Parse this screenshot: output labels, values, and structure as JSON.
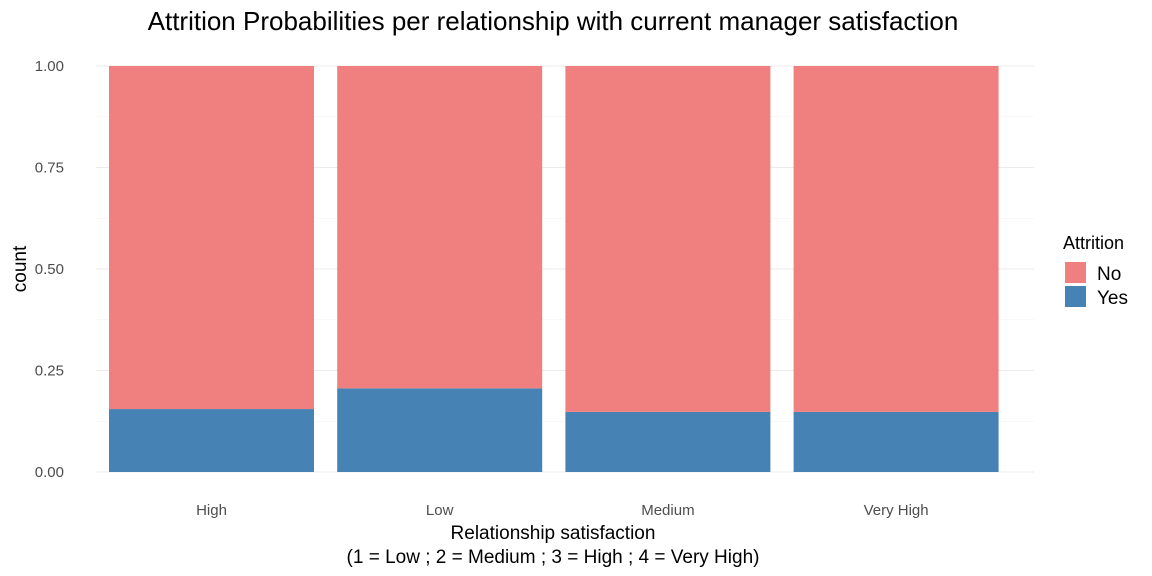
{
  "chart_data": {
    "type": "bar",
    "stacked": true,
    "title": "Attrition Probabilities per relationship with current manager satisfaction",
    "xlabel_line1": "Relationship satisfaction",
    "xlabel_line2": "(1 = Low ; 2 = Medium ; 3 = High ; 4 = Very High)",
    "ylabel": "count",
    "categories": [
      "High",
      "Low",
      "Medium",
      "Very High"
    ],
    "ylim": [
      0,
      1
    ],
    "yticks": [
      0.0,
      0.25,
      0.5,
      0.75,
      1.0
    ],
    "ytick_labels": [
      "0.00",
      "0.25",
      "0.50",
      "0.75",
      "1.00"
    ],
    "grid": true,
    "series": [
      {
        "name": "Yes",
        "color": "#4682B4",
        "values": [
          0.155,
          0.206,
          0.148,
          0.148
        ]
      },
      {
        "name": "No",
        "color": "#F08080",
        "values": [
          0.845,
          0.794,
          0.852,
          0.852
        ]
      }
    ],
    "legend": {
      "title": "Attrition",
      "position": "right",
      "entries": [
        {
          "label": "No",
          "color": "#F08080"
        },
        {
          "label": "Yes",
          "color": "#4682B4"
        }
      ]
    }
  }
}
